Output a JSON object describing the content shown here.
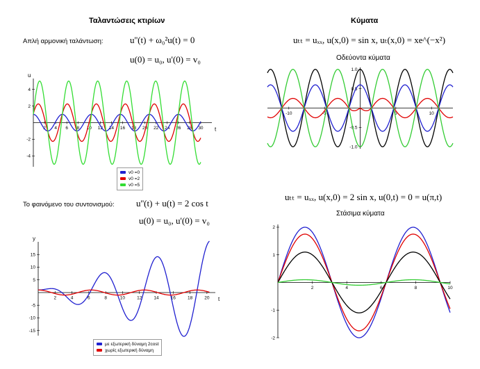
{
  "left": {
    "title": "Ταλαντώσεις κτιρίων",
    "harmonic": {
      "label": "Απλή αρμονική ταλάντωση:",
      "eq1": "u''(t) + ω₀²u(t) = 0",
      "eq2": "u(0) = u₀, u'(0) = v₀"
    },
    "resonance": {
      "label": "Το φαινόμενο του συντονισμού:",
      "eq1": "u''(t) + u(t) = 2 cos t",
      "eq2": "u(0) = u₀, u'(0) = v₀"
    }
  },
  "right": {
    "title": "Κύματα",
    "eq1": "uₜₜ = uₓₓ, u(x,0) = sin x, uₜ(x,0) = xe^(−x²)",
    "sub1": "Οδεύοντα κύματα",
    "eq2": "uₜₜ = uₓₓ, u(x,0) = 2 sin x, u(0,t) = 0 = u(π,t)",
    "sub2": "Στάσιμα κύματα"
  },
  "chart_data": [
    {
      "type": "line",
      "xlabel": "t",
      "ylabel": "u",
      "xlim": [
        0,
        32
      ],
      "ylim": [
        -5.3,
        5.3
      ],
      "xticks": [
        2,
        4,
        6,
        8,
        10,
        12,
        14,
        16,
        18,
        20,
        22,
        24,
        26,
        28,
        30
      ],
      "yticks": [
        -4,
        -2,
        2,
        4
      ],
      "legend_position": "bottom-center",
      "series": [
        {
          "name": "v0 =0",
          "color": "#2020d0",
          "amplitude": 1,
          "period": 5.2
        },
        {
          "name": "v0 =2",
          "color": "#e00000",
          "amplitude": 2.25,
          "period": 5.2
        },
        {
          "name": "v0 =5",
          "color": "#33dd33",
          "amplitude": 5,
          "period": 5.2
        }
      ]
    },
    {
      "type": "line",
      "xlabel": "t",
      "ylabel": "y",
      "xlim": [
        0,
        21
      ],
      "ylim": [
        -17,
        20
      ],
      "xticks": [
        2,
        4,
        6,
        8,
        10,
        12,
        14,
        16,
        18,
        20
      ],
      "yticks": [
        -15,
        -10,
        -5,
        5,
        10,
        15
      ],
      "legend_position": "bottom-center",
      "series": [
        {
          "name": "με εξωτερική δύναμη 2cost",
          "color": "#2020d0"
        },
        {
          "name": "χωρίς εξωτερική δύναμη",
          "color": "#e00000"
        }
      ]
    },
    {
      "type": "line",
      "xlim": [
        -13,
        13
      ],
      "ylim": [
        -1.05,
        1.05
      ],
      "xticks": [
        -10,
        -5,
        5,
        10
      ],
      "yticks": [
        -1.0,
        -0.5,
        0.5,
        1.0
      ],
      "series": [
        {
          "color": "#000000"
        },
        {
          "color": "#2020d0"
        },
        {
          "color": "#e00000"
        },
        {
          "color": "#33cc33"
        }
      ]
    },
    {
      "type": "line",
      "xlim": [
        0,
        10
      ],
      "ylim": [
        -2,
        2.1
      ],
      "xticks": [
        2,
        4,
        6,
        8,
        10
      ],
      "yticks": [
        -2,
        -1,
        1,
        2
      ],
      "series": [
        {
          "color": "#2020d0",
          "amplitude": 2
        },
        {
          "color": "#e00000",
          "amplitude": 1.75
        },
        {
          "color": "#000000",
          "amplitude": 1.1
        },
        {
          "color": "#33cc33",
          "amplitude": 0.1
        }
      ]
    }
  ]
}
